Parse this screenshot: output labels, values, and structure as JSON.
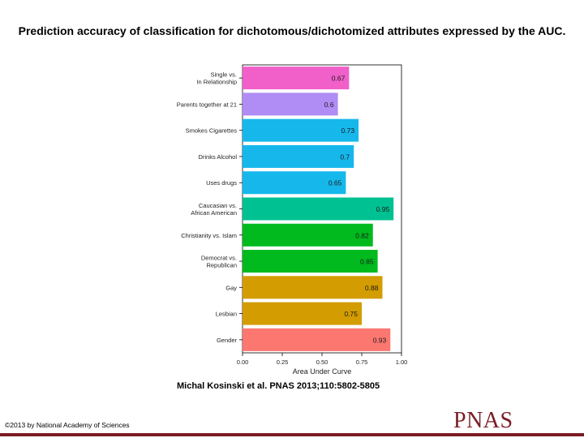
{
  "page": {
    "title": "Prediction accuracy of classification for dichotomous/dichotomized attributes expressed by the AUC.",
    "citation": "Michal Kosinski et al. PNAS 2013;110:5802-5805",
    "copyright": "©2013 by National Academy of Sciences",
    "brand": "PNAS"
  },
  "colors": {
    "brand": "#7b1c24"
  },
  "chart_data": {
    "type": "bar",
    "orientation": "horizontal",
    "title": "",
    "xlabel": "Area Under Curve",
    "ylabel": "",
    "xlim": [
      0,
      1
    ],
    "x_ticks": [
      "0.00",
      "0.25",
      "0.50",
      "0.75",
      "1.00"
    ],
    "grid": false,
    "categories": [
      [
        "Single vs.",
        "In Relationship"
      ],
      [
        "Parents together at 21"
      ],
      [
        "Smokes Cigarettes"
      ],
      [
        "Drinks Alcohol"
      ],
      [
        "Uses drugs"
      ],
      [
        "Caucasian vs.",
        "African American"
      ],
      [
        "Christianity vs. Islam"
      ],
      [
        "Democrat vs.",
        "Republican"
      ],
      [
        "Gay"
      ],
      [
        "Lesbian"
      ],
      [
        "Gender"
      ]
    ],
    "values": [
      0.67,
      0.6,
      0.73,
      0.7,
      0.65,
      0.95,
      0.82,
      0.85,
      0.88,
      0.75,
      0.93
    ],
    "value_labels": [
      "0.67",
      "0.6",
      "0.73",
      "0.7",
      "0.65",
      "0.95",
      "0.82",
      "0.85",
      "0.88",
      "0.75",
      "0.93"
    ],
    "bar_colors": [
      "#f15fc9",
      "#b08cf5",
      "#16b8ec",
      "#16b8ec",
      "#16b8ec",
      "#00c191",
      "#00ba1e",
      "#00ba1e",
      "#d39c00",
      "#d39c00",
      "#fb7770"
    ]
  }
}
